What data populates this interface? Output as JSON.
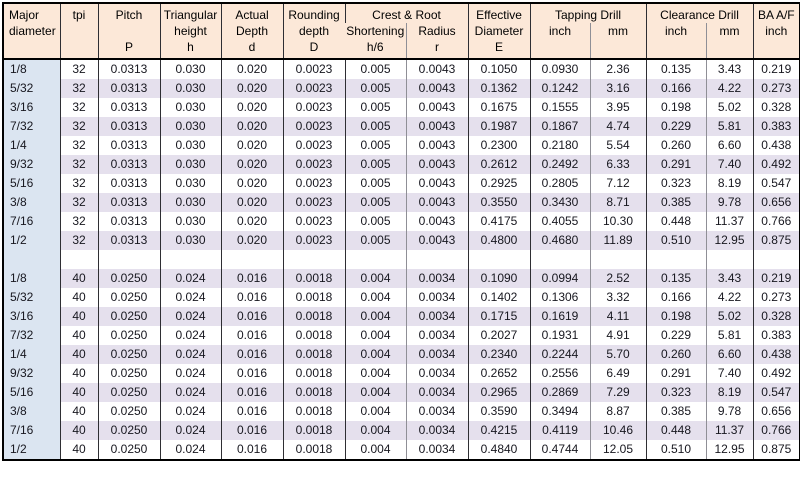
{
  "colors": {
    "header_bg": "#fce8d8",
    "alt_row_bg": "#e5e0ed",
    "major_col_bg": "#dbe5f1",
    "grid_dark": "#2e2e33",
    "grid_light": "#8f8f96",
    "outer_border": "#000000",
    "text": "#17171f"
  },
  "table": {
    "header": {
      "major_diameter": "Major\ndiameter",
      "tpi": "tpi",
      "pitch": "Pitch\n\nP",
      "triangular_height": "Triangular\nheight\nh",
      "actual_depth": "Actual\nDepth\nd",
      "rounding_depth": "Rounding\ndepth\nD",
      "crest_root": "Crest & Root",
      "shortening": "Shortening\nh/6",
      "radius": "Radius\nr",
      "effective_diameter": "Effective\nDiameter\nE",
      "tapping_drill": "Tapping Drill",
      "tapping_inch": "inch",
      "tapping_mm": "mm",
      "clearance_drill": "Clearance Drill",
      "clearance_inch": "inch",
      "clearance_mm": "mm",
      "ba_af": "BA A/F\ninch"
    },
    "columns": [
      "major-diameter",
      "tpi",
      "pitch",
      "triangular-height",
      "actual-depth",
      "rounding-depth",
      "shortening-h6",
      "radius-r",
      "effective-diameter",
      "tapping-drill-inch",
      "tapping-drill-mm",
      "clearance-drill-inch",
      "clearance-drill-mm",
      "ba-af-inch"
    ],
    "rows": [
      [
        "1/8",
        "32",
        "0.0313",
        "0.030",
        "0.020",
        "0.0023",
        "0.005",
        "0.0043",
        "0.1050",
        "0.0930",
        "2.36",
        "0.135",
        "3.43",
        "0.219"
      ],
      [
        "5/32",
        "32",
        "0.0313",
        "0.030",
        "0.020",
        "0.0023",
        "0.005",
        "0.0043",
        "0.1362",
        "0.1242",
        "3.16",
        "0.166",
        "4.22",
        "0.273"
      ],
      [
        "3/16",
        "32",
        "0.0313",
        "0.030",
        "0.020",
        "0.0023",
        "0.005",
        "0.0043",
        "0.1675",
        "0.1555",
        "3.95",
        "0.198",
        "5.02",
        "0.328"
      ],
      [
        "7/32",
        "32",
        "0.0313",
        "0.030",
        "0.020",
        "0.0023",
        "0.005",
        "0.0043",
        "0.1987",
        "0.1867",
        "4.74",
        "0.229",
        "5.81",
        "0.383"
      ],
      [
        "1/4",
        "32",
        "0.0313",
        "0.030",
        "0.020",
        "0.0023",
        "0.005",
        "0.0043",
        "0.2300",
        "0.2180",
        "5.54",
        "0.260",
        "6.60",
        "0.438"
      ],
      [
        "9/32",
        "32",
        "0.0313",
        "0.030",
        "0.020",
        "0.0023",
        "0.005",
        "0.0043",
        "0.2612",
        "0.2492",
        "6.33",
        "0.291",
        "7.40",
        "0.492"
      ],
      [
        "5/16",
        "32",
        "0.0313",
        "0.030",
        "0.020",
        "0.0023",
        "0.005",
        "0.0043",
        "0.2925",
        "0.2805",
        "7.12",
        "0.323",
        "8.19",
        "0.547"
      ],
      [
        "3/8",
        "32",
        "0.0313",
        "0.030",
        "0.020",
        "0.0023",
        "0.005",
        "0.0043",
        "0.3550",
        "0.3430",
        "8.71",
        "0.385",
        "9.78",
        "0.656"
      ],
      [
        "7/16",
        "32",
        "0.0313",
        "0.030",
        "0.020",
        "0.0023",
        "0.005",
        "0.0043",
        "0.4175",
        "0.4055",
        "10.30",
        "0.448",
        "11.37",
        "0.766"
      ],
      [
        "1/2",
        "32",
        "0.0313",
        "0.030",
        "0.020",
        "0.0023",
        "0.005",
        "0.0043",
        "0.4800",
        "0.4680",
        "11.89",
        "0.510",
        "12.95",
        "0.875"
      ],
      [
        "",
        "",
        "",
        "",
        "",
        "",
        "",
        "",
        "",
        "",
        "",
        "",
        "",
        ""
      ],
      [
        "1/8",
        "40",
        "0.0250",
        "0.024",
        "0.016",
        "0.0018",
        "0.004",
        "0.0034",
        "0.1090",
        "0.0994",
        "2.52",
        "0.135",
        "3.43",
        "0.219"
      ],
      [
        "5/32",
        "40",
        "0.0250",
        "0.024",
        "0.016",
        "0.0018",
        "0.004",
        "0.0034",
        "0.1402",
        "0.1306",
        "3.32",
        "0.166",
        "4.22",
        "0.273"
      ],
      [
        "3/16",
        "40",
        "0.0250",
        "0.024",
        "0.016",
        "0.0018",
        "0.004",
        "0.0034",
        "0.1715",
        "0.1619",
        "4.11",
        "0.198",
        "5.02",
        "0.328"
      ],
      [
        "7/32",
        "40",
        "0.0250",
        "0.024",
        "0.016",
        "0.0018",
        "0.004",
        "0.0034",
        "0.2027",
        "0.1931",
        "4.91",
        "0.229",
        "5.81",
        "0.383"
      ],
      [
        "1/4",
        "40",
        "0.0250",
        "0.024",
        "0.016",
        "0.0018",
        "0.004",
        "0.0034",
        "0.2340",
        "0.2244",
        "5.70",
        "0.260",
        "6.60",
        "0.438"
      ],
      [
        "9/32",
        "40",
        "0.0250",
        "0.024",
        "0.016",
        "0.0018",
        "0.004",
        "0.0034",
        "0.2652",
        "0.2556",
        "6.49",
        "0.291",
        "7.40",
        "0.492"
      ],
      [
        "5/16",
        "40",
        "0.0250",
        "0.024",
        "0.016",
        "0.0018",
        "0.004",
        "0.0034",
        "0.2965",
        "0.2869",
        "7.29",
        "0.323",
        "8.19",
        "0.547"
      ],
      [
        "3/8",
        "40",
        "0.0250",
        "0.024",
        "0.016",
        "0.0018",
        "0.004",
        "0.0034",
        "0.3590",
        "0.3494",
        "8.87",
        "0.385",
        "9.78",
        "0.656"
      ],
      [
        "7/16",
        "40",
        "0.0250",
        "0.024",
        "0.016",
        "0.0018",
        "0.004",
        "0.0034",
        "0.4215",
        "0.4119",
        "10.46",
        "0.448",
        "11.37",
        "0.766"
      ],
      [
        "1/2",
        "40",
        "0.0250",
        "0.024",
        "0.016",
        "0.0018",
        "0.004",
        "0.0034",
        "0.4840",
        "0.4744",
        "12.05",
        "0.510",
        "12.95",
        "0.875"
      ]
    ]
  }
}
